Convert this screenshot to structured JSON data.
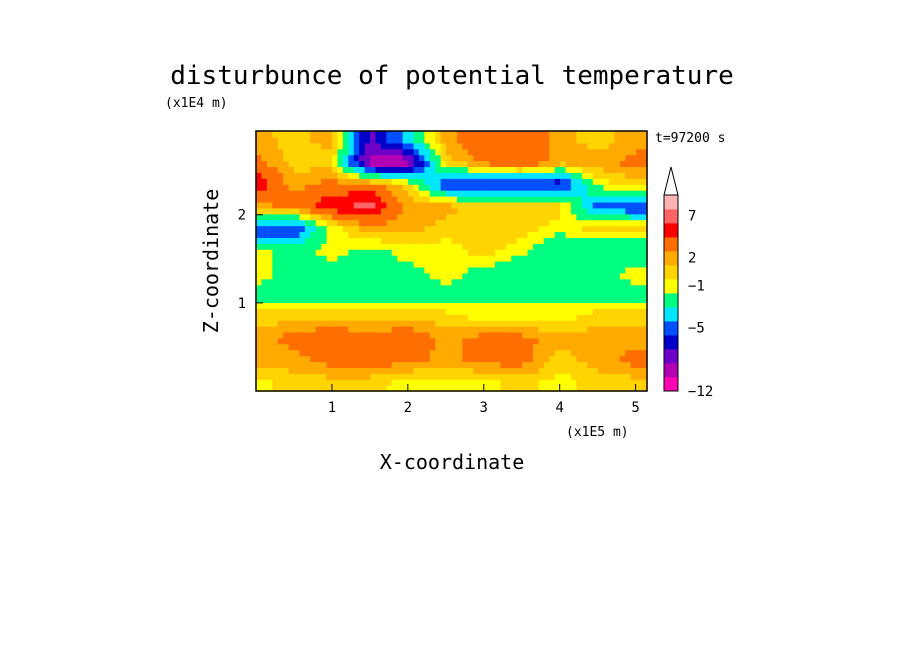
{
  "chart_data": {
    "type": "heatmap",
    "title": "disturbunce of potential temperature",
    "xlabel": "X-coordinate",
    "ylabel": "Z-coordinate",
    "x_unit": "(x1E5 m)",
    "y_unit": "(x1E4 m)",
    "time_label": "t=97200 s",
    "xlim": [
      0,
      5.15
    ],
    "ylim": [
      0,
      2.95
    ],
    "x_ticks": [
      "1",
      "2",
      "3",
      "4",
      "5"
    ],
    "y_ticks": [
      "1",
      "2"
    ],
    "colorbar": {
      "levels": [
        "-12",
        "-5",
        "-1",
        "2",
        "7"
      ],
      "colors": [
        "#ff00b4",
        "#b400b4",
        "#6e00c8",
        "#0000c8",
        "#0050ff",
        "#00e6ff",
        "#00ff80",
        "#ffff00",
        "#ffd400",
        "#ffaa00",
        "#ff6e00",
        "#ff0000",
        "#ff6464",
        "#ffb4b4",
        "#ffffff"
      ]
    },
    "grid": false,
    "legend": "right",
    "x": [
      0,
      0.5,
      1,
      1.5,
      2,
      2.5,
      3,
      3.5,
      4,
      4.5,
      5
    ],
    "y": [
      0.1,
      0.35,
      0.6,
      0.85,
      1.1,
      1.35,
      1.6,
      1.85,
      2.1,
      2.35,
      2.6,
      2.85
    ],
    "z": [
      [
        1,
        2,
        2,
        2,
        1,
        1,
        1,
        2,
        1,
        2,
        2
      ],
      [
        3,
        3,
        4,
        4,
        4,
        3,
        4,
        4,
        2,
        3,
        4
      ],
      [
        3,
        4,
        5,
        4,
        5,
        3,
        4,
        4,
        3,
        3,
        3
      ],
      [
        2,
        2,
        2,
        2,
        2,
        2,
        1,
        1,
        1,
        2,
        2
      ],
      [
        0,
        0,
        0,
        0,
        0,
        0,
        0,
        0,
        0,
        0,
        0
      ],
      [
        1,
        0,
        0,
        0,
        0,
        1,
        0,
        -1,
        -1,
        0,
        1
      ],
      [
        1,
        0,
        1,
        0,
        1,
        1,
        2,
        1,
        -1,
        -1,
        -1
      ],
      [
        -4,
        -4,
        1,
        3,
        3,
        2,
        2,
        2,
        1,
        2,
        2
      ],
      [
        3,
        4,
        6,
        7,
        3,
        3,
        2,
        2,
        2,
        -3,
        -4
      ],
      [
        6,
        3,
        4,
        4,
        2,
        -4,
        -5,
        -5,
        -5,
        1,
        2
      ],
      [
        4,
        2,
        2,
        -8,
        -8,
        2,
        4,
        5,
        3,
        3,
        4
      ],
      [
        3,
        2,
        3,
        -6,
        -2,
        3,
        5,
        5,
        3,
        2,
        3
      ]
    ]
  }
}
